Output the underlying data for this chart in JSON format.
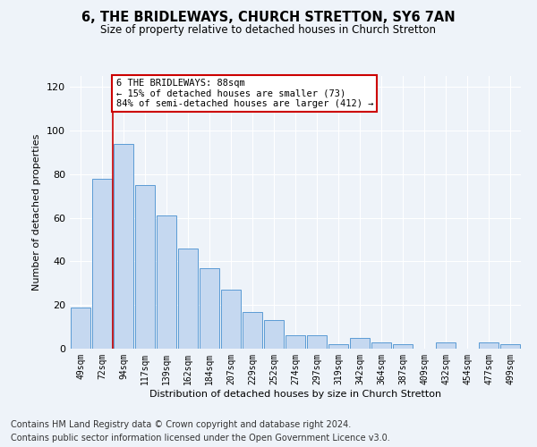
{
  "title": "6, THE BRIDLEWAYS, CHURCH STRETTON, SY6 7AN",
  "subtitle": "Size of property relative to detached houses in Church Stretton",
  "xlabel": "Distribution of detached houses by size in Church Stretton",
  "ylabel": "Number of detached properties",
  "categories": [
    "49sqm",
    "72sqm",
    "94sqm",
    "117sqm",
    "139sqm",
    "162sqm",
    "184sqm",
    "207sqm",
    "229sqm",
    "252sqm",
    "274sqm",
    "297sqm",
    "319sqm",
    "342sqm",
    "364sqm",
    "387sqm",
    "409sqm",
    "432sqm",
    "454sqm",
    "477sqm",
    "499sqm"
  ],
  "values": [
    19,
    78,
    94,
    75,
    61,
    46,
    37,
    27,
    17,
    13,
    6,
    6,
    2,
    5,
    3,
    2,
    0,
    3,
    0,
    3,
    2
  ],
  "bar_color": "#c5d8f0",
  "bar_edge_color": "#5b9bd5",
  "ylim": [
    0,
    125
  ],
  "yticks": [
    0,
    20,
    40,
    60,
    80,
    100,
    120
  ],
  "vline_color": "#cc0000",
  "annotation_text": "6 THE BRIDLEWAYS: 88sqm\n← 15% of detached houses are smaller (73)\n84% of semi-detached houses are larger (412) →",
  "annotation_box_color": "#ffffff",
  "annotation_box_edge_color": "#cc0000",
  "footer_line1": "Contains HM Land Registry data © Crown copyright and database right 2024.",
  "footer_line2": "Contains public sector information licensed under the Open Government Licence v3.0.",
  "bg_color": "#eef3f9",
  "plot_bg_color": "#eef3f9",
  "grid_color": "#ffffff",
  "title_fontsize": 10.5,
  "subtitle_fontsize": 8.5,
  "footer_fontsize": 7
}
